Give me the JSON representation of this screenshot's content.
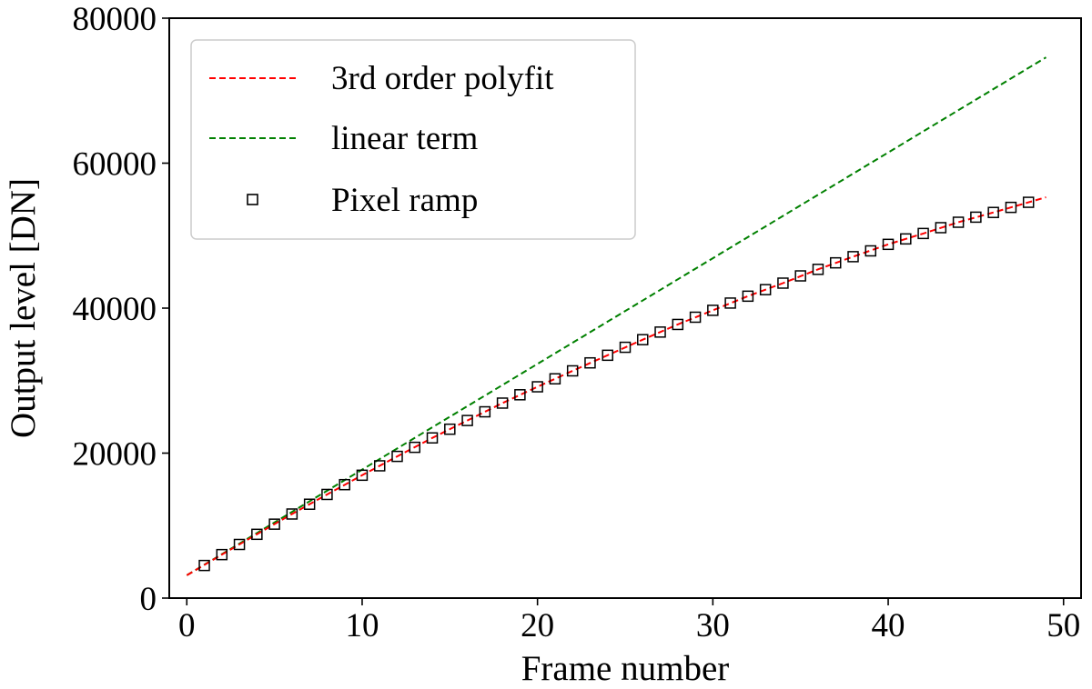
{
  "chart_data": {
    "type": "line",
    "title": "",
    "xlabel": "Frame number",
    "ylabel": "Output level [DN]",
    "xlim": [
      -1,
      51
    ],
    "ylim": [
      0,
      80000
    ],
    "xticks": [
      0,
      10,
      20,
      30,
      40,
      50
    ],
    "yticks": [
      0,
      20000,
      40000,
      60000,
      80000
    ],
    "legend_position": "top-left",
    "series": [
      {
        "name": "3rd order polyfit",
        "style": "dashed-line",
        "color": "#ff0000",
        "x": [
          0,
          2,
          4,
          6,
          8,
          10,
          12,
          14,
          16,
          18,
          20,
          22,
          24,
          26,
          28,
          30,
          32,
          34,
          36,
          38,
          40,
          42,
          44,
          46,
          48,
          49
        ],
        "y": [
          3150,
          6000,
          8800,
          11600,
          14300,
          16950,
          19550,
          22100,
          24500,
          26900,
          29150,
          31350,
          33500,
          35650,
          37750,
          39700,
          41650,
          43450,
          45350,
          47100,
          48800,
          50300,
          51850,
          53200,
          54600,
          55300
        ]
      },
      {
        "name": "linear term",
        "style": "dashed-line",
        "color": "#008000",
        "x": [
          0,
          49
        ],
        "y": [
          3150,
          74600
        ]
      },
      {
        "name": "Pixel ramp",
        "style": "hollow-square-markers",
        "color": "#000000",
        "x": [
          1,
          2,
          3,
          4,
          5,
          6,
          7,
          8,
          9,
          10,
          11,
          12,
          13,
          14,
          15,
          16,
          17,
          18,
          19,
          20,
          21,
          22,
          23,
          24,
          25,
          26,
          27,
          28,
          29,
          30,
          31,
          32,
          33,
          34,
          35,
          36,
          37,
          38,
          39,
          40,
          41,
          42,
          43,
          44,
          45,
          46,
          47,
          48
        ],
        "y": [
          4500,
          6000,
          7400,
          8800,
          10200,
          11600,
          12950,
          14300,
          15650,
          16950,
          18250,
          19550,
          20800,
          22100,
          23300,
          24500,
          25700,
          26900,
          28050,
          29150,
          30250,
          31350,
          32450,
          33500,
          34600,
          35650,
          36700,
          37750,
          38750,
          39700,
          40700,
          41650,
          42550,
          43450,
          44450,
          45350,
          46250,
          47100,
          47900,
          48800,
          49550,
          50300,
          51100,
          51850,
          52550,
          53200,
          53900,
          54600
        ]
      }
    ]
  }
}
